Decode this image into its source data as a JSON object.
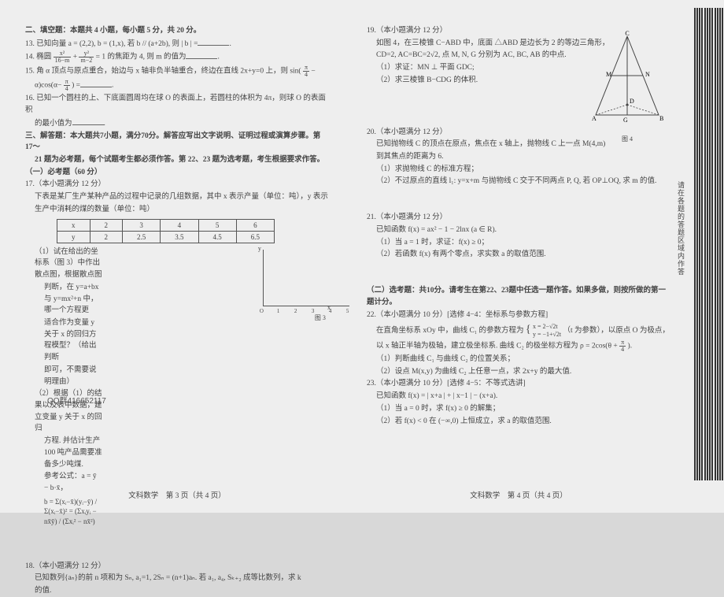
{
  "left": {
    "section2_title": "二、填空题：本题共 4 小题，每小题 5 分，共 20 分。",
    "q13": "13. 已知向量 a = (2,2), b = (1,x), 若 b // (a+2b), 则 | b | =",
    "q14_a": "14. 椭圆 ",
    "q14_frac1_n": "x²",
    "q14_frac1_d": "16−m",
    "q14_plus": " + ",
    "q14_frac2_n": "y²",
    "q14_frac2_d": "m−2",
    "q14_b": " = 1 的焦距为 4, 则 m 的值为",
    "q15_a": "15. 角 α 顶点与原点重合，始边与 x 轴非负半轴重合，终边在直线 2x+y=0 上，则 sin(",
    "q15_frac_n": "π",
    "q15_frac_d": "4",
    "q15_b": "−",
    "q15_c": "α)cos(α−",
    "q15_d": ") =",
    "q16_a": "16. 已知一个圆柱的上、下底面圆周均在球 O 的表面上，若圆柱的体积为 4π，则球 O 的表面积",
    "q16_b": "的最小值为",
    "section3_title_a": "三、解答题：本大题共7小题，满分70分。解答应写出文字说明、证明过程或演算步骤。第 17～",
    "section3_title_b": "21 题为必考题，每个试题考生都必须作答。第 22、23 题为选考题，考生根据要求作答。",
    "part1": "（一）必考题（60 分）",
    "q17": "17.（本小题满分 12 分）",
    "q17_a": "下表是某厂生产某种产品的过程中记录的几组数据，其中 x 表示产量（单位：吨），y 表示",
    "q17_b": "生产中消耗的煤的数量（单位：吨）",
    "table": {
      "header": [
        "x",
        "2",
        "3",
        "4",
        "5",
        "6"
      ],
      "row": [
        "y",
        "2",
        "2.5",
        "3.5",
        "4.5",
        "6.5"
      ]
    },
    "q17_1a": "（1）试在给出的坐标系（图 3）中作出散点图，根据散点图",
    "q17_1b": "判断，在 y=a+bx 与 y=mx²+n 中，哪一个方程更",
    "q17_1c": "适合作为变量 y 关于 x 的回归方程模型？（给出判断",
    "q17_1d": "即可，不需要说明理由）",
    "q17_2a": "（2）根据（1）的结果以及表中数据，建立变量 y 关于 x 的回归",
    "q17_2b": "方程. 并估计生产 100 吨产品需要准备多少吨煤.",
    "q17_ref": "参考公式：a = ȳ − b·x̄，",
    "q17_formula": "b = Σ(xᵢ−x̄)(yᵢ−ȳ) / Σ(xᵢ−x̄)² = (Σxᵢyᵢ − nx̄ȳ) / (Σxᵢ² − nx̄²)",
    "chart": {
      "ylabel": "y",
      "xlabel": "x",
      "ticks": [
        "O",
        "1",
        "2",
        "3",
        "4",
        "5",
        "6",
        "7"
      ],
      "caption": "图 3"
    },
    "qq": "QQ群416652117",
    "q18": "18.（本小题满分 12 分）",
    "q18_a": "已知数列{aₙ}的前 n 项和为 Sₙ, a₁=1, 2Sₙ = (n+1)aₙ. 若 a₁, a₄, Sₖ₊₂ 成等比数列，求 k",
    "q18_b": "的值.",
    "footer": "文科数学　第 3 页（共 4 页）"
  },
  "right": {
    "q19": "19.（本小题满分 12 分）",
    "q19_a": "如图 4，在三棱锥 C−ABD 中，底面 △ABD 是边长为 2 的等边三角形，",
    "q19_b": "CD=2, AC=BC=2√2, 点 M, N, G 分别为 AC, BC, AB 的中点.",
    "q19_1": "（1）求证：MN ⊥ 平面 GDC;",
    "q19_2": "（2）求三棱锥 B−CDG 的体积.",
    "fig4_labels": {
      "C": "C",
      "M": "M",
      "N": "N",
      "A": "A",
      "D": "D",
      "G": "G",
      "B": "B"
    },
    "fig4_caption": "图 4",
    "q20": "20.（本小题满分 12 分）",
    "q20_a": "已知抛物线 C 的顶点在原点，焦点在 x 轴上，抛物线 C 上一点 M(4,m)",
    "q20_b": "到其焦点的距离为 6.",
    "q20_1": "（1）求抛物线 C 的标准方程；",
    "q20_2": "（2）不过原点的直线 l₁: y=x+m 与抛物线 C 交于不同两点 P, Q, 若 OP⊥OQ, 求 m 的值.",
    "q21": "21.（本小题满分 12 分）",
    "q21_a": "已知函数 f(x) = ax² − 1 − 2lnx (a ∈ R).",
    "q21_1": "（1）当 a = 1 时，求证：f(x) ≥ 0；",
    "q21_2": "（2）若函数 f(x) 有两个零点，求实数 a 的取值范围.",
    "part2": "（二）选考题：共10分。请考生在第22、23题中任选一题作答。如果多做，则按所做的第一题计分。",
    "q22": "22.（本小题满分 10 分）[选修 4−4：坐标系与参数方程]",
    "q22_a": "在直角坐标系 xOy 中，曲线 C₁ 的参数方程为",
    "q22_sys_x": "x = 2−√2t",
    "q22_sys_y": "y = −1+√2t",
    "q22_b": "（t 为参数），以原点 O 为极点，",
    "q22_c": "以 x 轴正半轴为极轴，建立极坐标系. 曲线 C₂ 的极坐标方程为 ρ = 2cos(θ + ",
    "q22_frac_n": "π",
    "q22_frac_d": "4",
    "q22_d": ").",
    "q22_1": "（1）判断曲线 C₁ 与曲线 C₂ 的位置关系；",
    "q22_2": "（2）设点 M(x,y) 为曲线 C₂ 上任意一点，求 2x+y 的最大值.",
    "q23": "23.（本小题满分 10 分）[选修 4−5：不等式选讲]",
    "q23_a": "已知函数 f(x) = | x+a | + | x−1 | − (x+a).",
    "q23_1": "（1）当 a = 0 时，求 f(x) ≥ 0 的解集；",
    "q23_2": "（2）若 f(x) < 0 在 (−∞,0) 上恒成立，求 a 的取值范围.",
    "sidecap": "请在各题的答题区域内作答",
    "footer": "文科数学　第 4 页（共 4 页）"
  },
  "barcode_positions": [
    2,
    5,
    8,
    11,
    15,
    18,
    21,
    24,
    28,
    31,
    34,
    37
  ]
}
